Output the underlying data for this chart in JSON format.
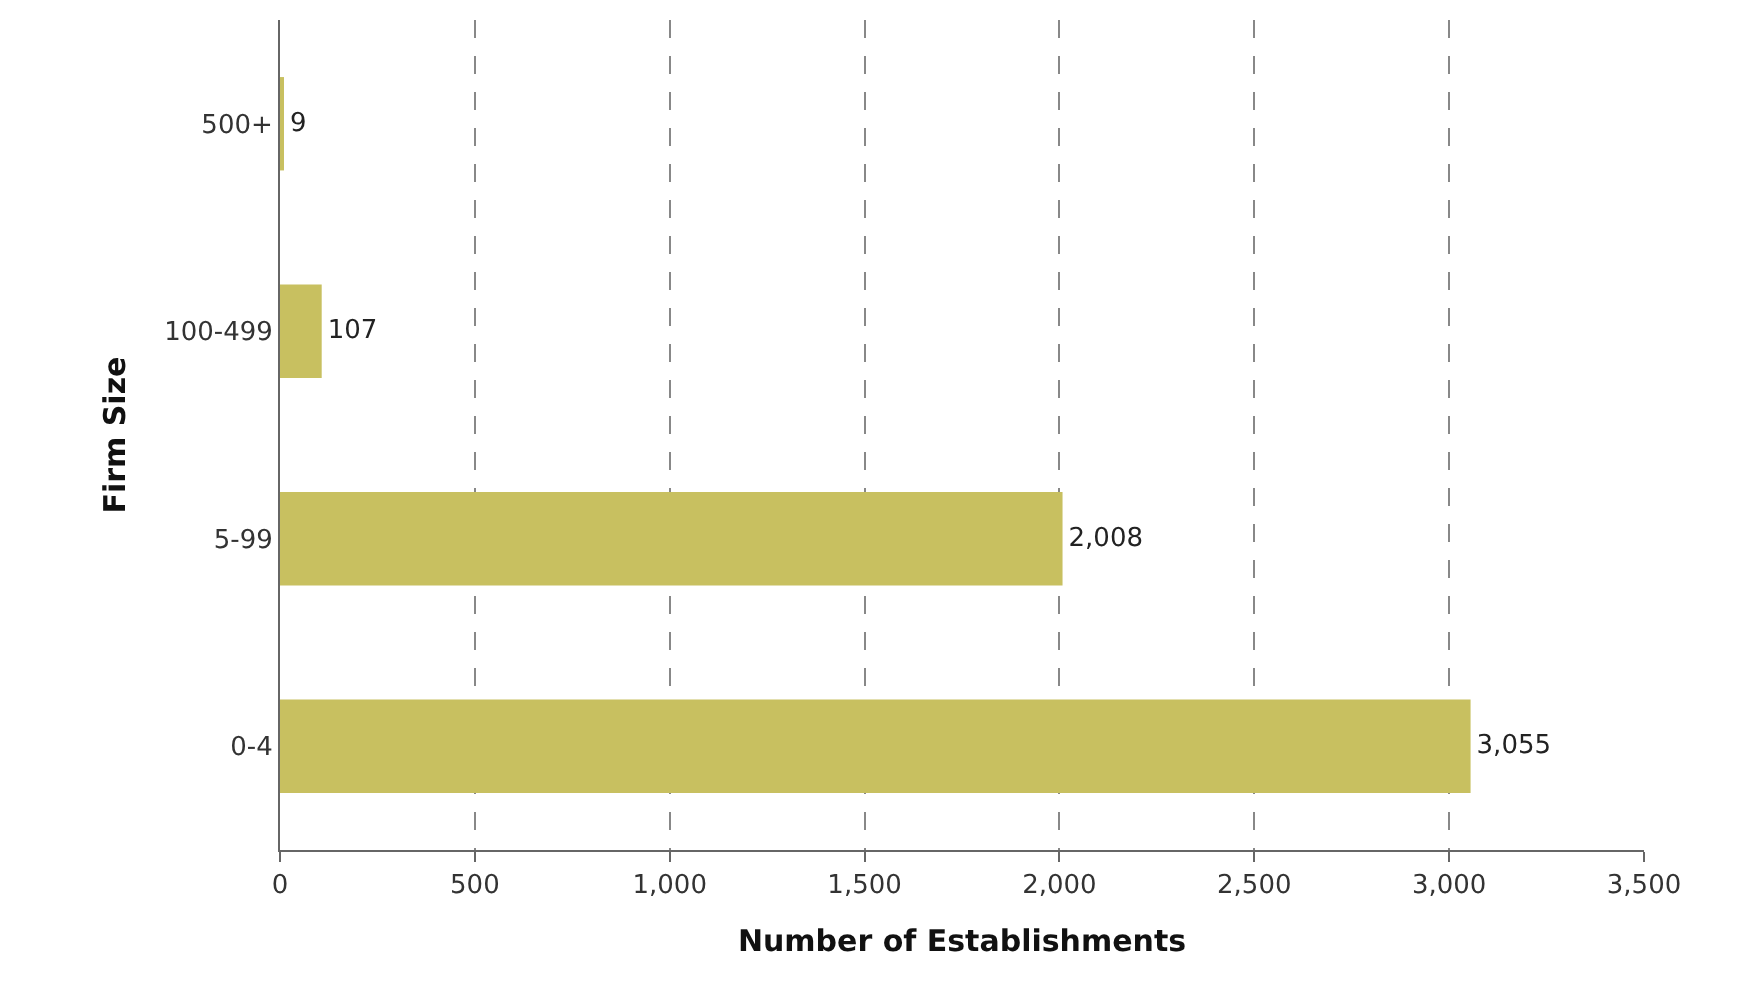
{
  "chart_data": {
    "type": "bar",
    "orientation": "horizontal",
    "xlabel": "Number of Establishments",
    "ylabel": "Firm Size",
    "categories": [
      "500+",
      "100-499",
      "5-99",
      "0-4"
    ],
    "values": [
      9,
      107,
      2008,
      3055
    ],
    "value_labels": [
      "9",
      "107",
      "2,008",
      "3,055"
    ],
    "color": "#c8c060",
    "xlim": [
      0,
      3500
    ],
    "xticks": [
      0,
      500,
      {
        "value": 1000,
        "label": "1,000"
      },
      {
        "value": 1500,
        "label": "1,500"
      },
      {
        "value": 2000,
        "label": "2,000"
      },
      {
        "value": 2500,
        "label": "2,500"
      },
      {
        "value": 3000,
        "label": "3,000"
      },
      {
        "value": 3500,
        "label": "3,500"
      }
    ],
    "grid": "x"
  }
}
